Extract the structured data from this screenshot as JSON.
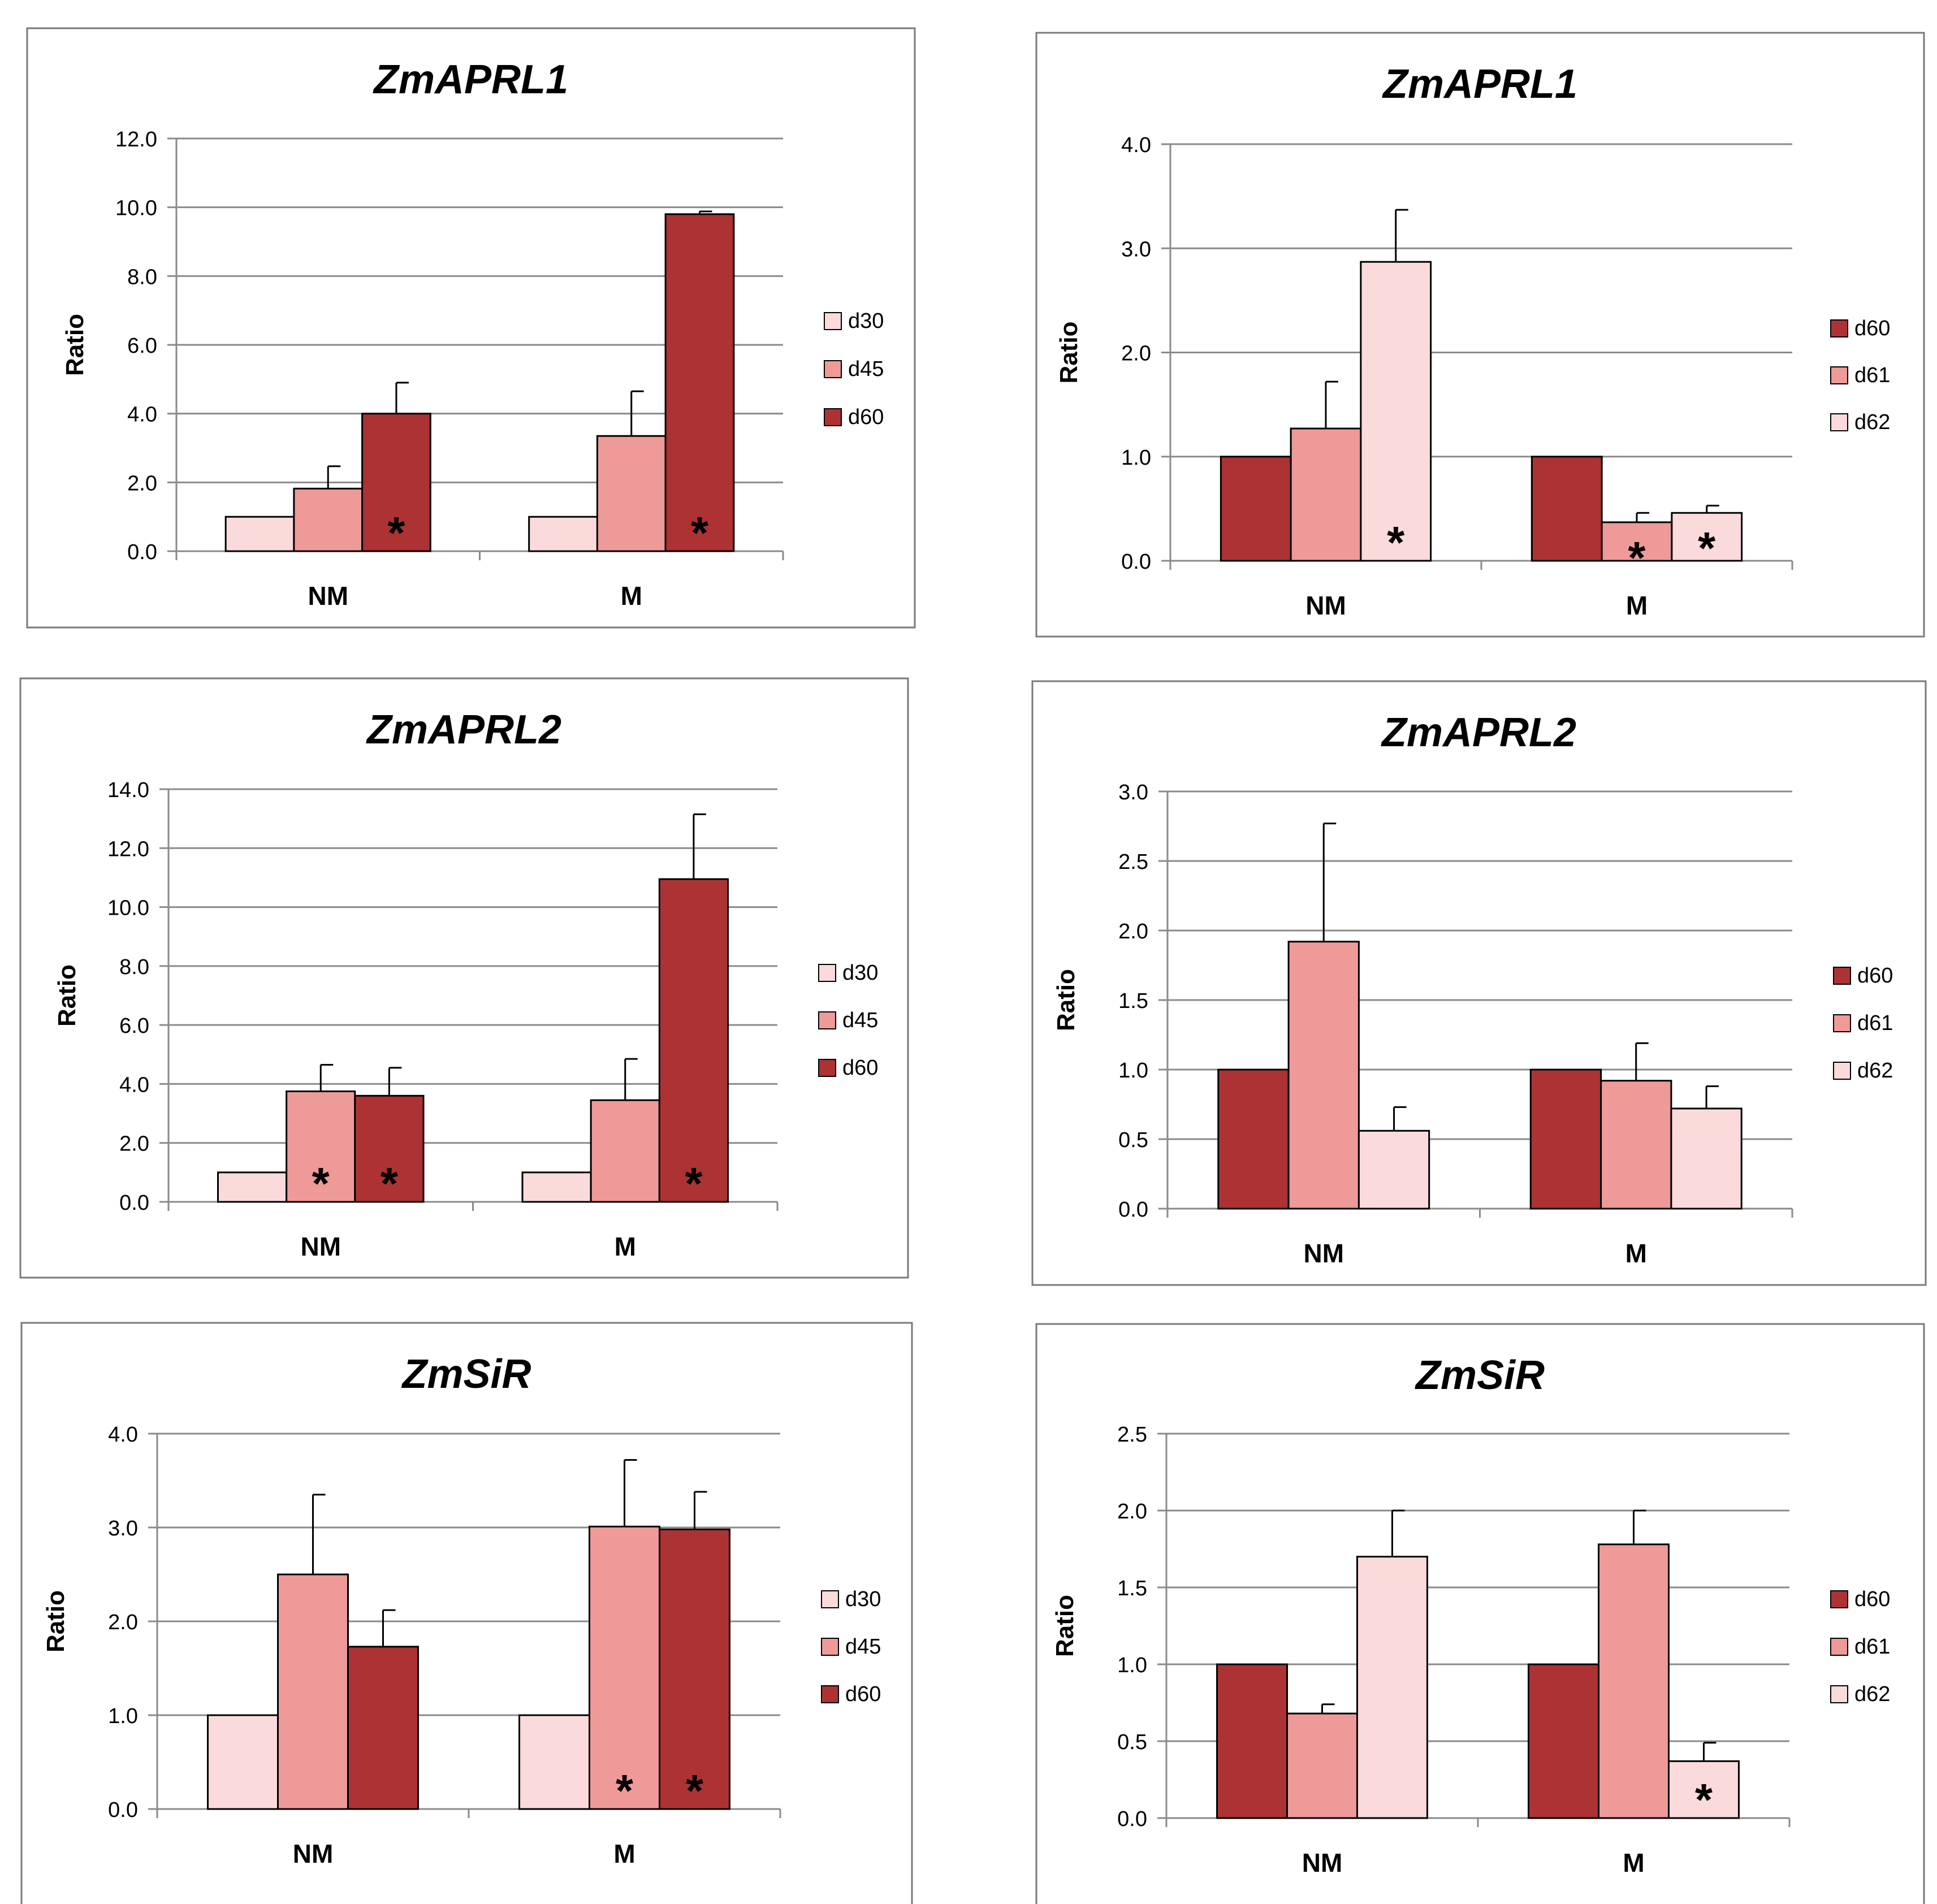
{
  "colors": {
    "d30": "#fadadb",
    "d45": "#ee9a98",
    "d60": "#ad3234",
    "d61": "#ee9a98",
    "d62": "#fadadb",
    "grid": "#8a8a8a",
    "frame": "#7a7a7a",
    "bar_stroke": "#000000"
  },
  "chart_data": [
    {
      "type": "bar",
      "title": "ZmAPRL1",
      "ylabel": "Ratio",
      "xlabel": "",
      "categories": [
        "NM",
        "M"
      ],
      "ylim": [
        0,
        12
      ],
      "yticks": [
        "0.0",
        "2.0",
        "4.0",
        "6.0",
        "8.0",
        "10.0",
        "12.0"
      ],
      "legend_position": "right",
      "series": [
        {
          "name": "d30",
          "values": [
            1.0,
            1.0
          ],
          "errors": [
            null,
            null
          ],
          "sig": [
            false,
            false
          ]
        },
        {
          "name": "d45",
          "values": [
            1.82,
            3.35
          ],
          "errors": [
            0.65,
            1.3
          ],
          "sig": [
            false,
            false
          ]
        },
        {
          "name": "d60",
          "values": [
            4.0,
            9.8
          ],
          "errors": [
            0.9,
            0.08
          ],
          "sig": [
            true,
            true
          ]
        }
      ]
    },
    {
      "type": "bar",
      "title": "ZmAPRL1",
      "ylabel": "Ratio",
      "xlabel": "",
      "categories": [
        "NM",
        "M"
      ],
      "ylim": [
        0,
        4
      ],
      "yticks": [
        "0.0",
        "1.0",
        "2.0",
        "3.0",
        "4.0"
      ],
      "legend_position": "right",
      "series": [
        {
          "name": "d60",
          "values": [
            1.0,
            1.0
          ],
          "errors": [
            null,
            null
          ],
          "sig": [
            false,
            false
          ]
        },
        {
          "name": "d61",
          "values": [
            1.27,
            0.37
          ],
          "errors": [
            0.45,
            0.09
          ],
          "sig": [
            false,
            true
          ]
        },
        {
          "name": "d62",
          "values": [
            2.87,
            0.46
          ],
          "errors": [
            0.5,
            0.07
          ],
          "sig": [
            true,
            true
          ]
        }
      ]
    },
    {
      "type": "bar",
      "title": "ZmAPRL2",
      "ylabel": "Ratio",
      "xlabel": "",
      "categories": [
        "NM",
        "M"
      ],
      "ylim": [
        0,
        14
      ],
      "yticks": [
        "0.0",
        "2.0",
        "4.0",
        "6.0",
        "8.0",
        "10.0",
        "12.0",
        "14.0"
      ],
      "legend_position": "right",
      "series": [
        {
          "name": "d30",
          "values": [
            1.0,
            1.0
          ],
          "errors": [
            null,
            null
          ],
          "sig": [
            false,
            false
          ]
        },
        {
          "name": "d45",
          "values": [
            3.75,
            3.45
          ],
          "errors": [
            0.9,
            1.4
          ],
          "sig": [
            true,
            false
          ]
        },
        {
          "name": "d60",
          "values": [
            3.6,
            10.95
          ],
          "errors": [
            0.95,
            2.2
          ],
          "sig": [
            true,
            true
          ]
        }
      ]
    },
    {
      "type": "bar",
      "title": "ZmAPRL2",
      "ylabel": "Ratio",
      "xlabel": "",
      "categories": [
        "NM",
        "M"
      ],
      "ylim": [
        0,
        3
      ],
      "yticks": [
        "0.0",
        "0.5",
        "1.0",
        "1.5",
        "2.0",
        "2.5",
        "3.0"
      ],
      "legend_position": "right",
      "series": [
        {
          "name": "d60",
          "values": [
            1.0,
            1.0
          ],
          "errors": [
            null,
            null
          ],
          "sig": [
            false,
            false
          ]
        },
        {
          "name": "d61",
          "values": [
            1.92,
            0.92
          ],
          "errors": [
            0.85,
            0.27
          ],
          "sig": [
            false,
            false
          ]
        },
        {
          "name": "d62",
          "values": [
            0.56,
            0.72
          ],
          "errors": [
            0.17,
            0.16
          ],
          "sig": [
            false,
            false
          ]
        }
      ]
    },
    {
      "type": "bar",
      "title": "ZmSiR",
      "ylabel": "Ratio",
      "xlabel": "",
      "categories": [
        "NM",
        "M"
      ],
      "ylim": [
        0,
        4
      ],
      "yticks": [
        "0.0",
        "1.0",
        "2.0",
        "3.0",
        "4.0"
      ],
      "legend_position": "right",
      "series": [
        {
          "name": "d30",
          "values": [
            1.0,
            1.0
          ],
          "errors": [
            null,
            null
          ],
          "sig": [
            false,
            false
          ]
        },
        {
          "name": "d45",
          "values": [
            2.5,
            3.01
          ],
          "errors": [
            0.85,
            0.71
          ],
          "sig": [
            false,
            true
          ]
        },
        {
          "name": "d60",
          "values": [
            1.73,
            2.98
          ],
          "errors": [
            0.39,
            0.4
          ],
          "sig": [
            false,
            true
          ]
        }
      ]
    },
    {
      "type": "bar",
      "title": "ZmSiR",
      "ylabel": "Ratio",
      "xlabel": "",
      "categories": [
        "NM",
        "M"
      ],
      "ylim": [
        0,
        2.5
      ],
      "yticks": [
        "0.0",
        "0.5",
        "1.0",
        "1.5",
        "2.0",
        "2.5"
      ],
      "legend_position": "right",
      "series": [
        {
          "name": "d60",
          "values": [
            1.0,
            1.0
          ],
          "errors": [
            null,
            null
          ],
          "sig": [
            false,
            false
          ]
        },
        {
          "name": "d61",
          "values": [
            0.68,
            1.78
          ],
          "errors": [
            0.06,
            0.22
          ],
          "sig": [
            false,
            false
          ]
        },
        {
          "name": "d62",
          "values": [
            1.7,
            0.37
          ],
          "errors": [
            0.3,
            0.12
          ],
          "sig": [
            false,
            true
          ]
        }
      ]
    }
  ]
}
